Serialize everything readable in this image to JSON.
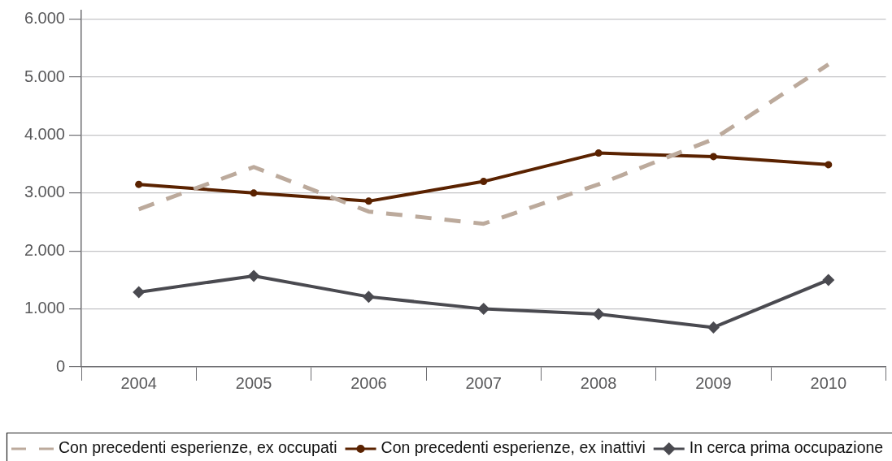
{
  "chart_data": {
    "type": "line",
    "categories": [
      "2004",
      "2005",
      "2006",
      "2007",
      "2008",
      "2009",
      "2010"
    ],
    "series": [
      {
        "name": "Con precedenti esperienze, ex occupati",
        "color": "#bcaa9c",
        "line_style": "dashed",
        "marker": "none",
        "values": [
          2720,
          3450,
          2680,
          2470,
          3150,
          3930,
          5220
        ]
      },
      {
        "name": "Con precedenti esperienze, ex inattivi",
        "color": "#5a2200",
        "line_style": "solid",
        "marker": "circle",
        "values": [
          3150,
          3000,
          2860,
          3200,
          3690,
          3630,
          3490
        ]
      },
      {
        "name": "In cerca prima occupazione",
        "color": "#4a4a50",
        "line_style": "solid",
        "marker": "diamond",
        "values": [
          1290,
          1570,
          1210,
          1000,
          910,
          680,
          1500
        ]
      }
    ],
    "ylim": [
      0,
      6150
    ],
    "yticks": [
      0,
      {
        "value": 1000,
        "label": "1.000"
      },
      {
        "value": 2000,
        "label": "2.000"
      },
      {
        "value": 3000,
        "label": "3.000"
      },
      {
        "value": 4000,
        "label": "4.000"
      },
      {
        "value": 5000,
        "label": "5.000"
      },
      {
        "value": 6000,
        "label": "6.000"
      }
    ],
    "grid": "y",
    "legend": "bottom"
  }
}
